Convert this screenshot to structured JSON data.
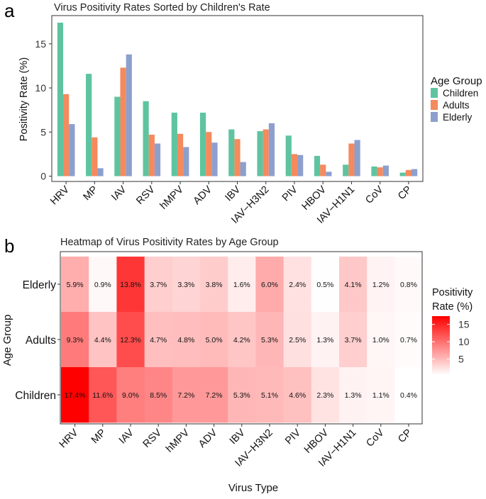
{
  "chart_data": [
    {
      "type": "bar",
      "panel_label": "a",
      "title": "Virus Positivity Rates Sorted by Children's Rate",
      "xlabel": "",
      "ylabel": "Positivity Rate (%)",
      "ylim": [
        -0.6,
        18.2
      ],
      "yticks": [
        0,
        5,
        10,
        15
      ],
      "categories": [
        "HRV",
        "MP",
        "IAV",
        "RSV",
        "hMPV",
        "ADV",
        "IBV",
        "IAV−H3N2",
        "PIV",
        "HBOV",
        "IAV−H1N1",
        "CoV",
        "CP"
      ],
      "series": [
        {
          "name": "Children",
          "color": "#5ec4a0",
          "values": [
            17.4,
            11.6,
            9.0,
            8.5,
            7.2,
            7.2,
            5.3,
            5.1,
            4.6,
            2.3,
            1.3,
            1.1,
            0.4
          ]
        },
        {
          "name": "Adults",
          "color": "#f48a5d",
          "values": [
            9.3,
            4.4,
            12.3,
            4.7,
            4.8,
            5.0,
            4.2,
            5.3,
            2.5,
            1.3,
            3.7,
            1.0,
            0.7
          ]
        },
        {
          "name": "Elderly",
          "color": "#8d9fcd",
          "values": [
            5.9,
            0.9,
            13.8,
            3.7,
            3.3,
            3.8,
            1.6,
            6.0,
            2.4,
            0.5,
            4.1,
            1.2,
            0.8
          ]
        }
      ],
      "legend": {
        "title": "Age Group",
        "position": "right"
      }
    },
    {
      "type": "heatmap",
      "panel_label": "b",
      "title": "Heatmap of Virus Positivity Rates by Age Group",
      "xlabel": "Virus Type",
      "ylabel": "Age Group",
      "x": [
        "HRV",
        "MP",
        "IAV",
        "RSV",
        "hMPV",
        "ADV",
        "IBV",
        "IAV−H3N2",
        "PIV",
        "HBOV",
        "IAV−H1N1",
        "CoV",
        "CP"
      ],
      "y": [
        "Elderly",
        "Adults",
        "Children"
      ],
      "values": [
        [
          5.9,
          0.9,
          13.8,
          3.7,
          3.3,
          3.8,
          1.6,
          6.0,
          2.4,
          0.5,
          4.1,
          1.2,
          0.8
        ],
        [
          9.3,
          4.4,
          12.3,
          4.7,
          4.8,
          5.0,
          4.2,
          5.3,
          2.5,
          1.3,
          3.7,
          1.0,
          0.7
        ],
        [
          17.4,
          11.6,
          9.0,
          8.5,
          7.2,
          7.2,
          5.3,
          5.1,
          4.6,
          2.3,
          1.3,
          1.1,
          0.4
        ]
      ],
      "value_suffix": "%",
      "color_range": [
        0.4,
        17.4
      ],
      "color_low": "#ffffff",
      "color_high": "#ff0000",
      "colorbar": {
        "title_line1": "Positivity",
        "title_line2": "Rate (%)",
        "ticks": [
          5,
          10,
          15
        ]
      }
    }
  ]
}
